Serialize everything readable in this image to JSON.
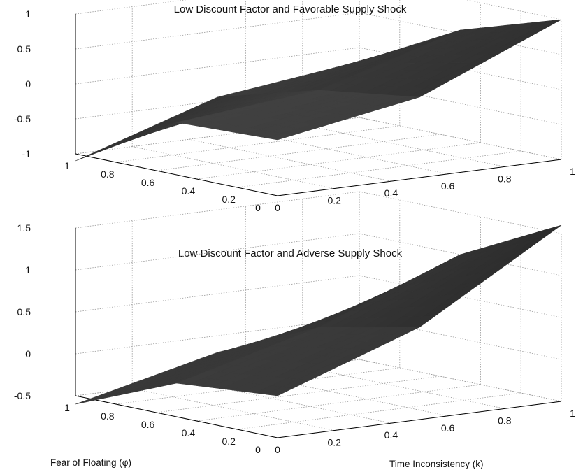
{
  "colors": {
    "background": "#ffffff",
    "surface_dark": "#161616",
    "surface_light": "#7d7d7d",
    "grid": "#9a9a9a"
  },
  "labels": {
    "phi_axis": "Fear of Floating (φ)",
    "k_axis": "Time Inconsistency (k)"
  },
  "chart_data": [
    {
      "type": "surface",
      "title": "Low Discount Factor and Favorable Supply Shock",
      "xlabel": "",
      "ylabel": "",
      "x_name": "Time Inconsistency (k)",
      "y_name": "Fear of Floating (φ)",
      "xlim": [
        0,
        1
      ],
      "ylim": [
        0,
        1
      ],
      "zlim": [
        -1,
        1
      ],
      "x_ticks": [
        "0",
        "0.2",
        "0.4",
        "0.6",
        "0.8",
        "1"
      ],
      "y_ticks": [
        "0",
        "0.2",
        "0.4",
        "0.6",
        "0.8",
        "1"
      ],
      "z_ticks": [
        "-1",
        "-0.5",
        "0",
        "0.5",
        "1"
      ],
      "grid": true,
      "surface": {
        "k_points": [
          0,
          0.5,
          1
        ],
        "phi_points": [
          0,
          0.5,
          1
        ],
        "z": [
          [
            -0.2,
            0.15,
            1.0
          ],
          [
            -0.25,
            -0.05,
            0.55
          ],
          [
            -1.1,
            -0.45,
            -0.2
          ]
        ]
      }
    },
    {
      "type": "surface",
      "title": "Low Discount Factor and Adverse Supply Shock",
      "xlabel": "Time Inconsistency (k)",
      "ylabel": "Fear of Floating (φ)",
      "xlim": [
        0,
        1
      ],
      "ylim": [
        0,
        1
      ],
      "zlim": [
        -0.5,
        1.5
      ],
      "x_ticks": [
        "0",
        "0.2",
        "0.4",
        "0.6",
        "0.8",
        "1"
      ],
      "y_ticks": [
        "0",
        "0.2",
        "0.4",
        "0.6",
        "0.8",
        "1"
      ],
      "z_ticks": [
        "-0.5",
        "0",
        "0.5",
        "1",
        "1.5"
      ],
      "grid": true,
      "surface": {
        "k_points": [
          0,
          0.5,
          1
        ],
        "phi_points": [
          0,
          0.5,
          1
        ],
        "z": [
          [
            0.0,
            0.6,
            1.6
          ],
          [
            -0.1,
            0.35,
            1.0
          ],
          [
            -0.6,
            -0.2,
            0.0
          ]
        ]
      }
    }
  ]
}
